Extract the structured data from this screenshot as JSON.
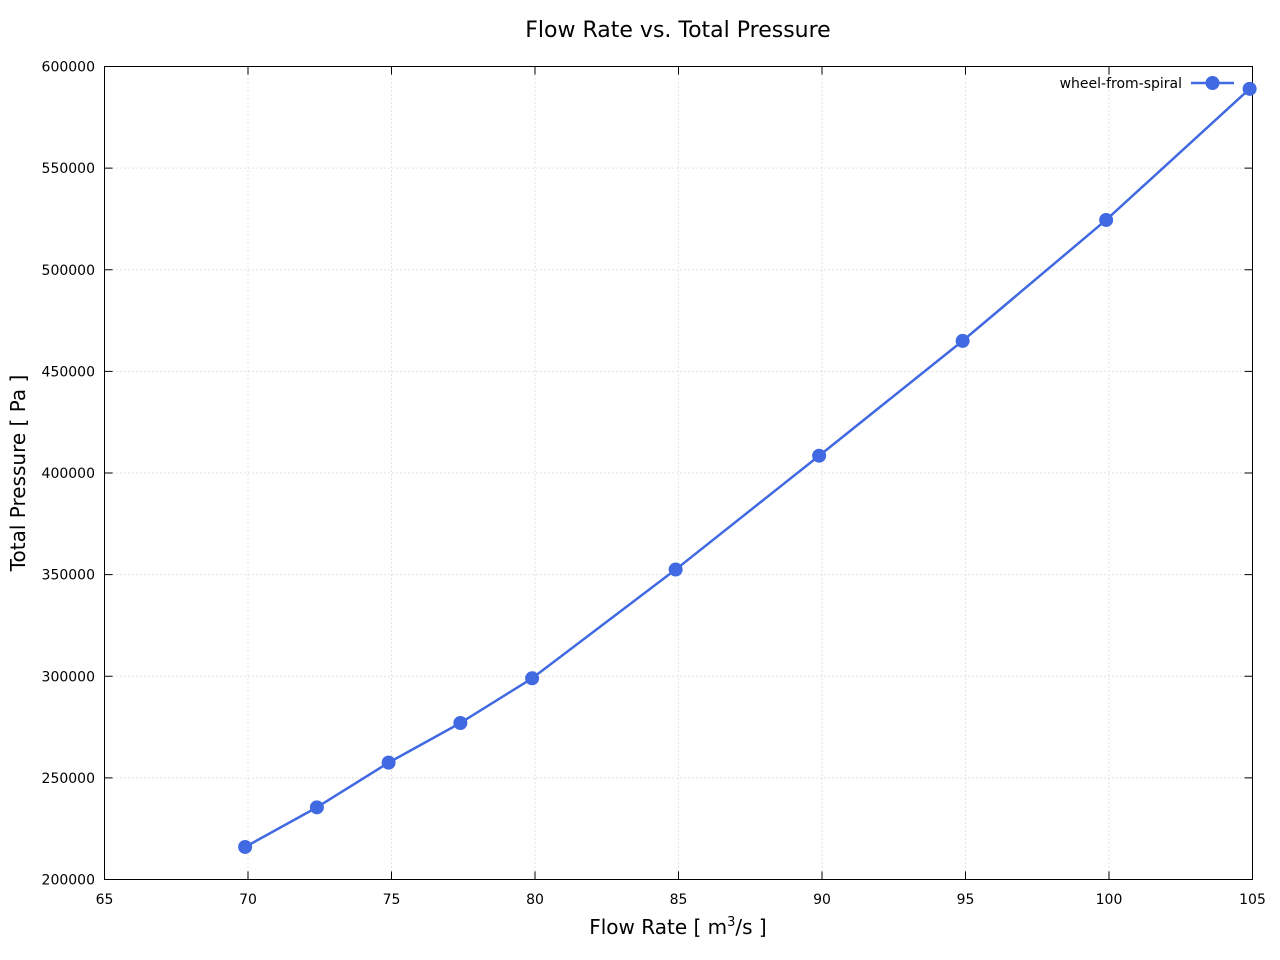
{
  "chart_data": {
    "type": "line",
    "title": "Flow Rate vs. Total Pressure",
    "xlabel_main": "Flow Rate [ m",
    "xlabel_sup": "3",
    "xlabel_tail": "/s ]",
    "ylabel": "Total Pressure [ Pa ]",
    "xlim": [
      65,
      105
    ],
    "ylim": [
      200000,
      600000
    ],
    "x_ticks": [
      65,
      70,
      75,
      80,
      85,
      90,
      95,
      100,
      105
    ],
    "y_ticks": [
      200000,
      250000,
      300000,
      350000,
      400000,
      450000,
      500000,
      550000,
      600000
    ],
    "grid": true,
    "legend_position": "top-right",
    "series": [
      {
        "name": "wheel-from-spiral",
        "color": "#4169e1",
        "marker": "circle",
        "x": [
          69.9,
          72.4,
          74.9,
          77.4,
          79.9,
          84.9,
          89.9,
          94.9,
          99.9,
          104.9
        ],
        "y": [
          216000,
          235500,
          257500,
          277000,
          299000,
          352500,
          408500,
          465000,
          524500,
          589000
        ]
      }
    ]
  }
}
